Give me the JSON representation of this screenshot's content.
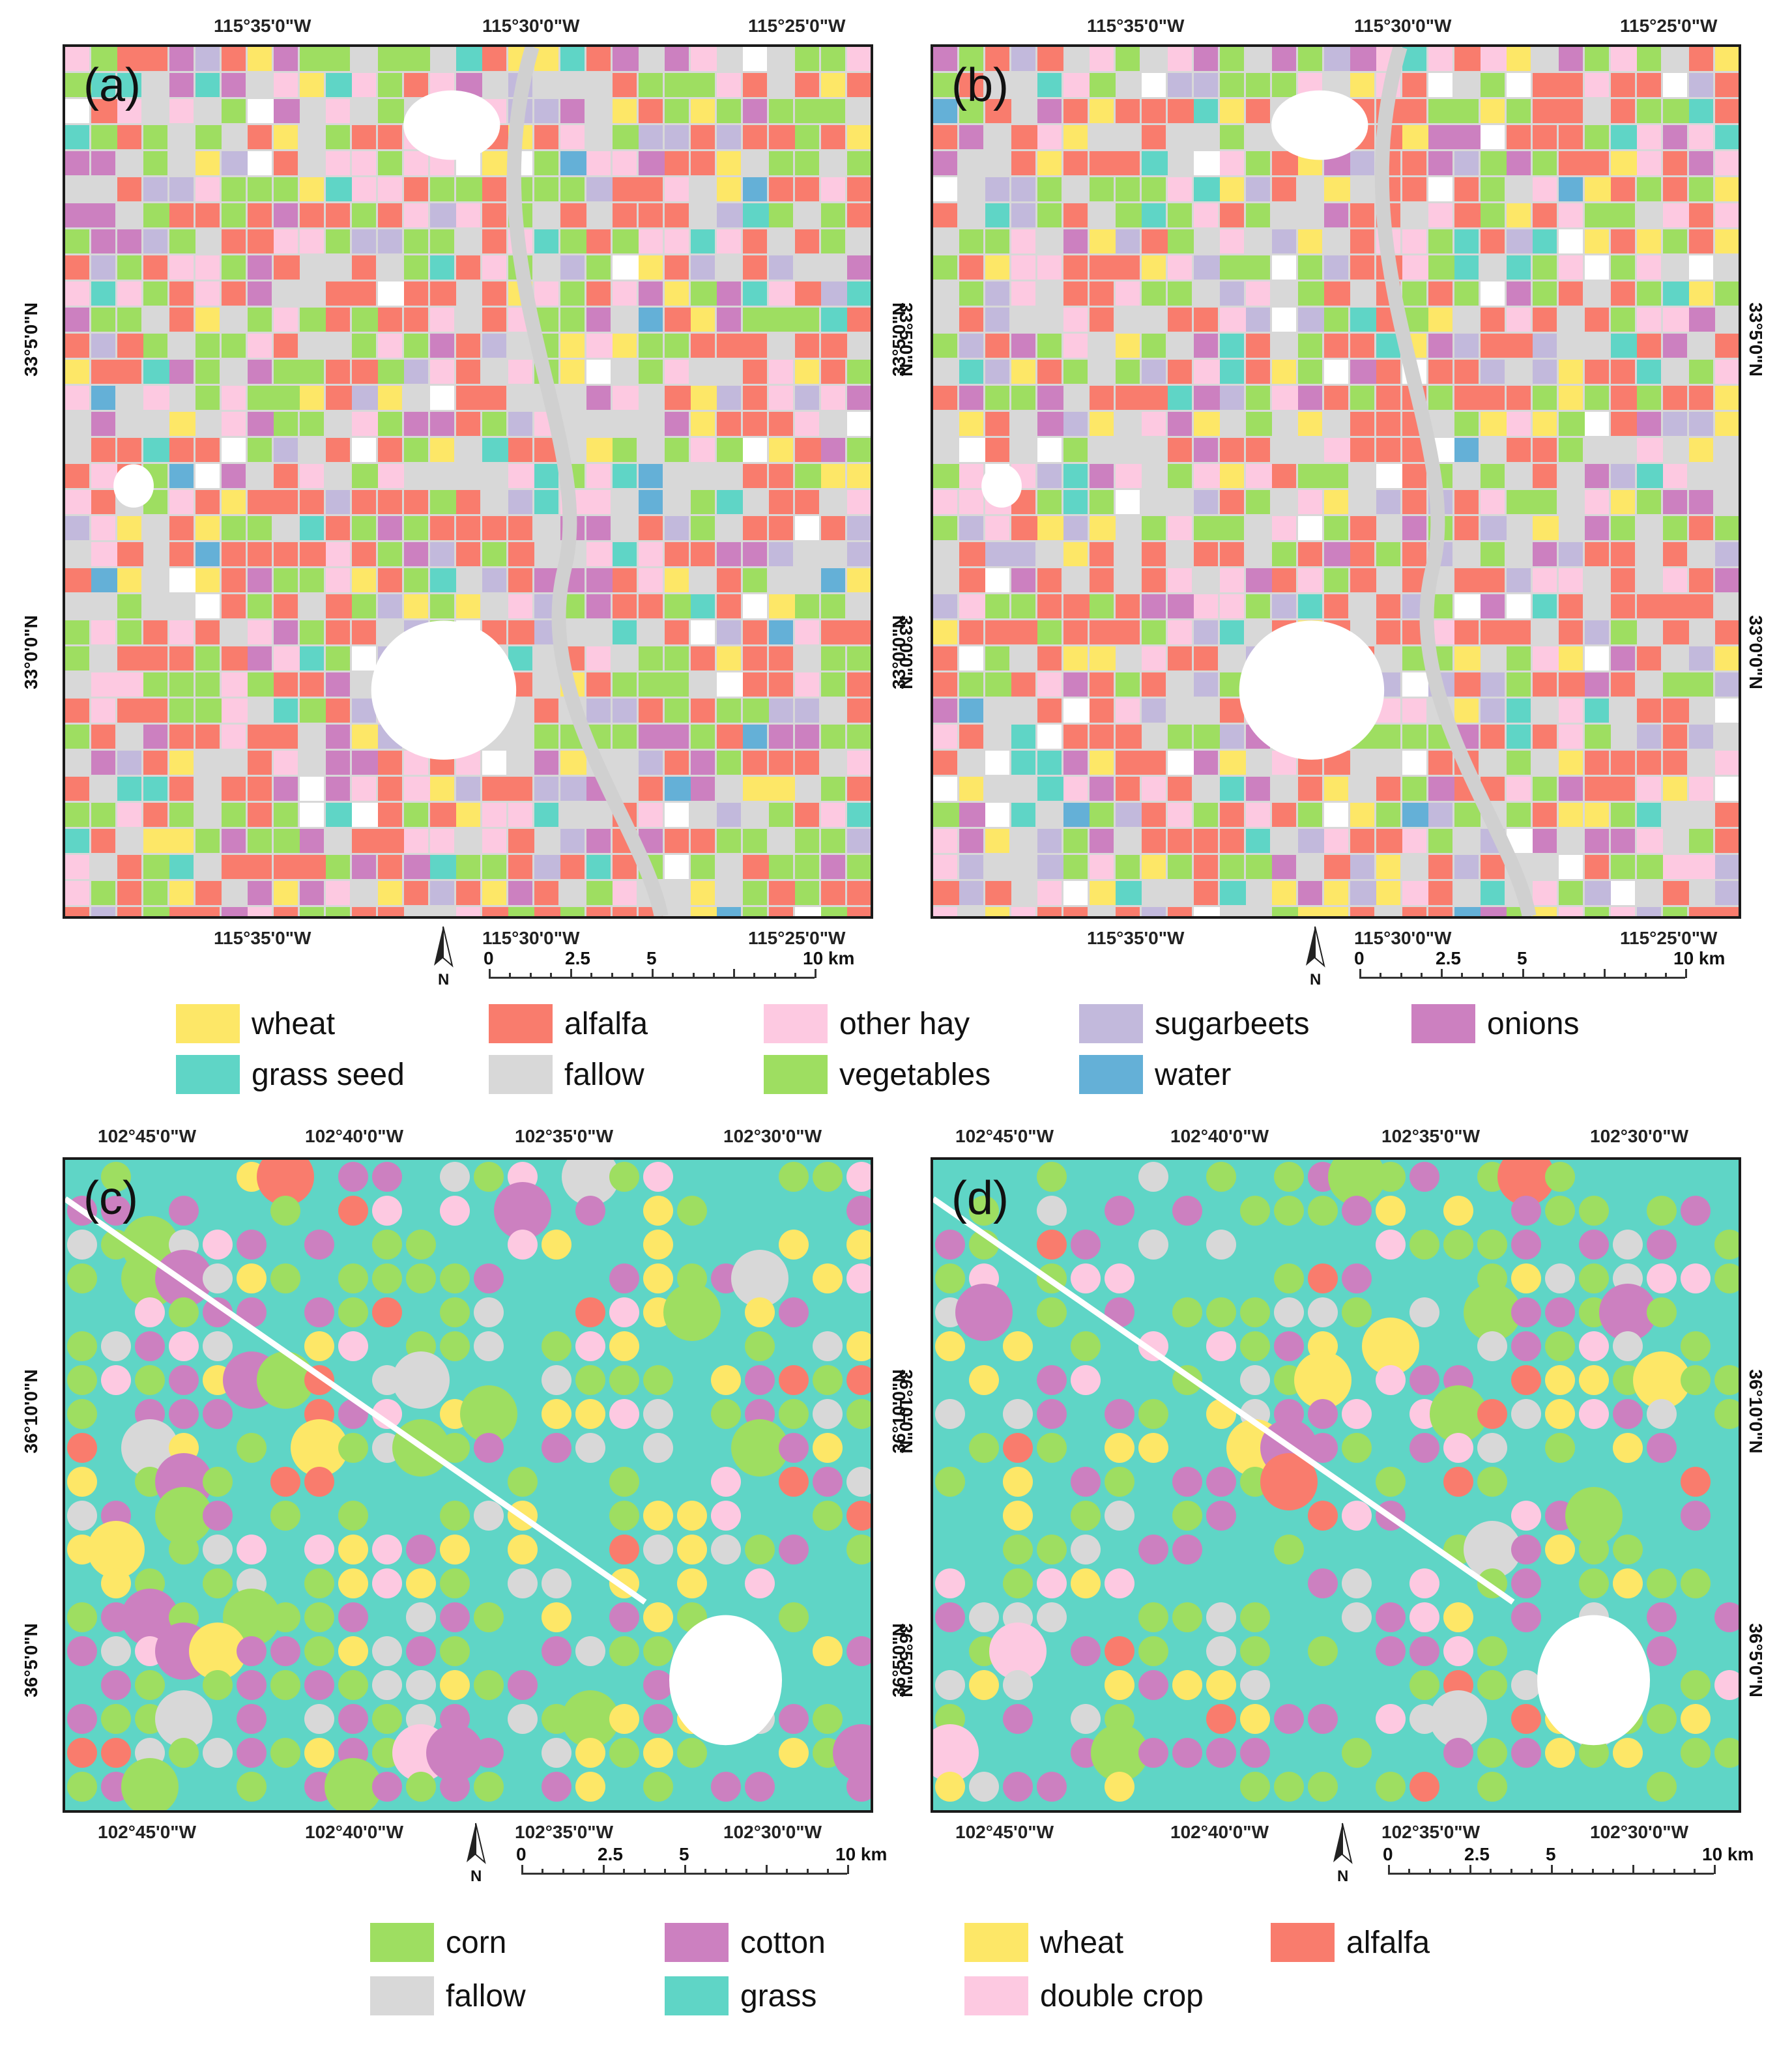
{
  "panels": [
    {
      "id": "a",
      "label": "(a)",
      "top_ticks": [
        "115°35'0\"W",
        "115°30'0\"W",
        "115°25'0\"W"
      ],
      "bottom_ticks": [
        "115°35'0\"W",
        "115°30'0\"W",
        "115°25'0\"W"
      ],
      "left_ticks": [
        "33°5'0\"N",
        "33°0'0\"N"
      ],
      "right_ticks": [
        "33°5'0\"N",
        "33°0'0\"N"
      ]
    },
    {
      "id": "b",
      "label": "(b)",
      "top_ticks": [
        "115°35'0\"W",
        "115°30'0\"W",
        "115°25'0\"W"
      ],
      "bottom_ticks": [
        "115°35'0\"W",
        "115°30'0\"W",
        "115°25'0\"W"
      ],
      "left_ticks": [
        "33°5'0\"N",
        "33°0'0\"N"
      ],
      "right_ticks": [
        "33°5'0\"N",
        "33°0'0\"N"
      ]
    },
    {
      "id": "c",
      "label": "(c)",
      "top_ticks": [
        "102°45'0\"W",
        "102°40'0\"W",
        "102°35'0\"W",
        "102°30'0\"W"
      ],
      "bottom_ticks": [
        "102°45'0\"W",
        "102°40'0\"W",
        "102°35'0\"W",
        "102°30'0\"W"
      ],
      "left_ticks": [
        "36°10'0\"N",
        "36°5'0\"N"
      ],
      "right_ticks": [
        "36°10'0\"N",
        "36°5'0\"N"
      ]
    },
    {
      "id": "d",
      "label": "(d)",
      "top_ticks": [
        "102°45'0\"W",
        "102°40'0\"W",
        "102°35'0\"W",
        "102°30'0\"W"
      ],
      "bottom_ticks": [
        "102°45'0\"W",
        "102°40'0\"W",
        "102°35'0\"W",
        "102°30'0\"W"
      ],
      "left_ticks": [
        "36°10'0\"N",
        "36°5'0\"N"
      ],
      "right_ticks": [
        "36°10'0\"N",
        "36°5'0\"N"
      ]
    }
  ],
  "scale_bar": {
    "labels": [
      "0",
      "2.5",
      "5",
      "10 km"
    ],
    "values_km": [
      0,
      2.5,
      5,
      10
    ]
  },
  "north_arrow": {
    "label": "N"
  },
  "legend_top": [
    {
      "label": "wheat",
      "color": "#fde767"
    },
    {
      "label": "alfalfa",
      "color": "#f97c6d"
    },
    {
      "label": "other hay",
      "color": "#fdc9e1"
    },
    {
      "label": "sugarbeets",
      "color": "#c2b9dc"
    },
    {
      "label": "onions",
      "color": "#cc80c0"
    },
    {
      "label": "grass seed",
      "color": "#5fd5c6"
    },
    {
      "label": "fallow",
      "color": "#d8d8d8"
    },
    {
      "label": "vegetables",
      "color": "#9ede61"
    },
    {
      "label": "water",
      "color": "#64b0d7"
    }
  ],
  "legend_bottom": [
    {
      "label": "corn",
      "color": "#9ede61"
    },
    {
      "label": "cotton",
      "color": "#cc80c0"
    },
    {
      "label": "wheat",
      "color": "#fde767"
    },
    {
      "label": "alfalfa",
      "color": "#f97c6d"
    },
    {
      "label": "fallow",
      "color": "#d8d8d8"
    },
    {
      "label": "grass",
      "color": "#5fd5c6"
    },
    {
      "label": "double crop",
      "color": "#fdc9e1"
    }
  ]
}
